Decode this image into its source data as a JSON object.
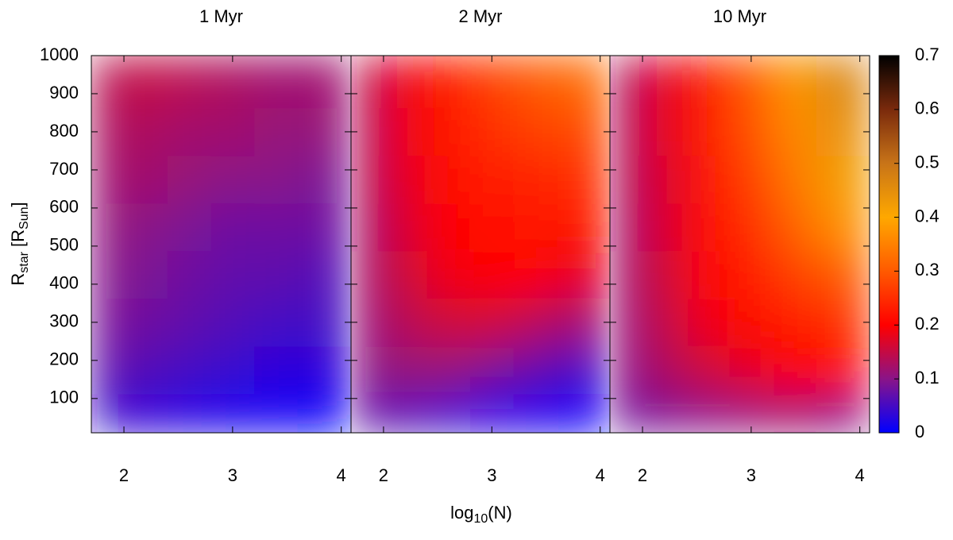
{
  "chart_data": {
    "type": "heatmap",
    "xlabel": {
      "base": "log",
      "sub": "10",
      "rest": "(N)"
    },
    "ylabel": [
      {
        "text": "R"
      },
      {
        "text": "star",
        "sub": true
      },
      {
        "text": " [R"
      },
      {
        "text": "Sun",
        "sub": true
      },
      {
        "text": "]"
      }
    ],
    "xlim": [
      1.7,
      4.09
    ],
    "xticks": [
      2,
      3,
      4
    ],
    "ylim": [
      10,
      1000
    ],
    "yticks": [
      100,
      200,
      300,
      400,
      500,
      600,
      700,
      800,
      900,
      1000
    ],
    "x": [
      1.8,
      2.2,
      2.6,
      3.0,
      3.4,
      3.8
    ],
    "y": [
      50,
      175,
      300,
      425,
      550,
      675,
      800,
      925
    ],
    "colorbar": {
      "zlim": [
        0,
        0.7
      ],
      "zticks": [
        0,
        0.1,
        0.2,
        0.3,
        0.4,
        0.5,
        0.6,
        0.7
      ],
      "colors": [
        "#0000ff",
        "#8a1488",
        "#ff0000",
        "#ff5a00",
        "#ffa800",
        "#c87418",
        "#7a2a0c",
        "#000000"
      ]
    },
    "panels": [
      {
        "title": "1 Myr",
        "z": [
          [
            0.04,
            0.03,
            0.02,
            0.01,
            0.005,
            0.0
          ],
          [
            0.07,
            0.06,
            0.05,
            0.04,
            0.03,
            0.03
          ],
          [
            0.09,
            0.08,
            0.07,
            0.06,
            0.05,
            0.05
          ],
          [
            0.1,
            0.09,
            0.08,
            0.07,
            0.07,
            0.06
          ],
          [
            0.11,
            0.1,
            0.09,
            0.08,
            0.08,
            0.08
          ],
          [
            0.12,
            0.12,
            0.11,
            0.1,
            0.1,
            0.09
          ],
          [
            0.13,
            0.13,
            0.12,
            0.12,
            0.11,
            0.11
          ],
          [
            0.14,
            0.15,
            0.14,
            0.13,
            0.12,
            0.12
          ]
        ]
      },
      {
        "title": "2 Myr",
        "z": [
          [
            0.07,
            0.06,
            0.04,
            0.02,
            0.01,
            0.0
          ],
          [
            0.1,
            0.11,
            0.11,
            0.09,
            0.07,
            0.05
          ],
          [
            0.11,
            0.14,
            0.16,
            0.16,
            0.14,
            0.12
          ],
          [
            0.12,
            0.16,
            0.19,
            0.2,
            0.2,
            0.18
          ],
          [
            0.12,
            0.17,
            0.2,
            0.21,
            0.22,
            0.22
          ],
          [
            0.13,
            0.18,
            0.21,
            0.23,
            0.24,
            0.25
          ],
          [
            0.13,
            0.19,
            0.22,
            0.25,
            0.27,
            0.28
          ],
          [
            0.14,
            0.19,
            0.23,
            0.27,
            0.3,
            0.32
          ]
        ]
      },
      {
        "title": "10 Myr",
        "z": [
          [
            0.08,
            0.09,
            0.1,
            0.11,
            0.12,
            0.1
          ],
          [
            0.1,
            0.13,
            0.16,
            0.18,
            0.2,
            0.21
          ],
          [
            0.11,
            0.15,
            0.19,
            0.21,
            0.23,
            0.25
          ],
          [
            0.12,
            0.16,
            0.2,
            0.23,
            0.27,
            0.3
          ],
          [
            0.12,
            0.17,
            0.21,
            0.25,
            0.31,
            0.37
          ],
          [
            0.13,
            0.17,
            0.22,
            0.27,
            0.34,
            0.42
          ],
          [
            0.13,
            0.18,
            0.23,
            0.29,
            0.36,
            0.44
          ],
          [
            0.13,
            0.18,
            0.23,
            0.3,
            0.38,
            0.47
          ]
        ]
      }
    ]
  }
}
